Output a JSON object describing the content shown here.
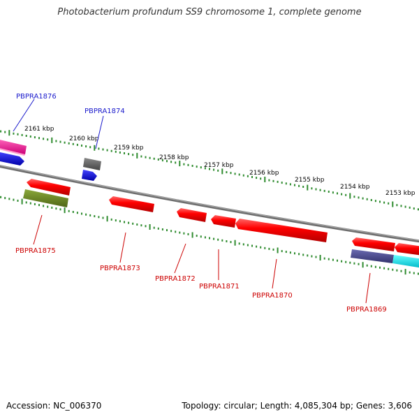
{
  "title": "Photobacterium profundum SS9 chromosome 1, complete genome",
  "accession": "Accession: NC_006370",
  "summary": "Topology: circular; Length: 4,085,304 bp; Genes: 3,606",
  "colors": {
    "backbone": "#808080",
    "tick": "#2e8b2e",
    "label_top": "#1a1acc",
    "label_bottom": "#cc0000"
  },
  "scale_ticks": [
    {
      "label": "2161 kbp"
    },
    {
      "label": "2160 kbp"
    },
    {
      "label": "2159 kbp"
    },
    {
      "label": "2158 kbp"
    },
    {
      "label": "2157 kbp"
    },
    {
      "label": "2156 kbp"
    },
    {
      "label": "2155 kbp"
    },
    {
      "label": "2154 kbp"
    },
    {
      "label": "2153 kbp"
    }
  ],
  "gene_labels": [
    {
      "name": "PBPRA1876",
      "color": "#1a1acc"
    },
    {
      "name": "PBPRA1874",
      "color": "#1a1acc"
    },
    {
      "name": "PBPRA1875",
      "color": "#cc0000"
    },
    {
      "name": "PBPRA1873",
      "color": "#cc0000"
    },
    {
      "name": "PBPRA1872",
      "color": "#cc0000"
    },
    {
      "name": "PBPRA1871",
      "color": "#cc0000"
    },
    {
      "name": "PBPRA1870",
      "color": "#cc0000"
    },
    {
      "name": "PBPRA1869",
      "color": "#cc0000"
    }
  ]
}
